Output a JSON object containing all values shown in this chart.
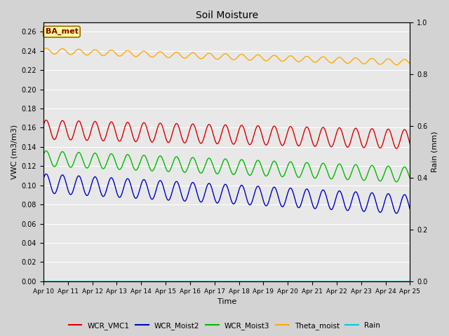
{
  "title": "Soil Moisture",
  "xlabel": "Time",
  "ylabel_left": "VWC (m3/m3)",
  "ylabel_right": "Rain (mm)",
  "xlim_days": [
    0,
    15
  ],
  "ylim_left": [
    0.0,
    0.27
  ],
  "ylim_right": [
    0.0,
    1.0
  ],
  "yticks_left": [
    0.0,
    0.02,
    0.04,
    0.06,
    0.08,
    0.1,
    0.12,
    0.14,
    0.16,
    0.18,
    0.2,
    0.22,
    0.24,
    0.26
  ],
  "yticks_right": [
    0.0,
    0.2,
    0.4,
    0.6,
    0.8,
    1.0
  ],
  "xtick_labels": [
    "Apr 10",
    "Apr 11",
    "Apr 12",
    "Apr 13",
    "Apr 14",
    "Apr 15",
    "Apr 16",
    "Apr 17",
    "Apr 18",
    "Apr 19",
    "Apr 20",
    "Apr 21",
    "Apr 22",
    "Apr 23",
    "Apr 24",
    "Apr 25"
  ],
  "fig_bg": "#d3d3d3",
  "plot_bg": "#e8e8e8",
  "grid_color": "#ffffff",
  "line_colors": {
    "WCR_VMC1": "#dd0000",
    "WCR_Moist2": "#0000cc",
    "WCR_Moist3": "#00bb00",
    "Theta_moist": "#ffaa00",
    "Rain": "#00ccdd"
  },
  "annotation_text": "BA_met",
  "annotation_bg": "#ffff99",
  "annotation_border": "#996600",
  "wcr_vmc1_base": 0.158,
  "wcr_vmc1_drift": -0.01,
  "wcr_vmc1_amp": 0.01,
  "wcr_moist2_base": 0.102,
  "wcr_moist2_drift": -0.022,
  "wcr_moist2_amp": 0.01,
  "wcr_moist3_base": 0.128,
  "wcr_moist3_drift": -0.017,
  "wcr_moist3_amp": 0.008,
  "theta_base": 0.24,
  "theta_drift": -0.012,
  "theta_amp": 0.003,
  "freq": 1.5
}
